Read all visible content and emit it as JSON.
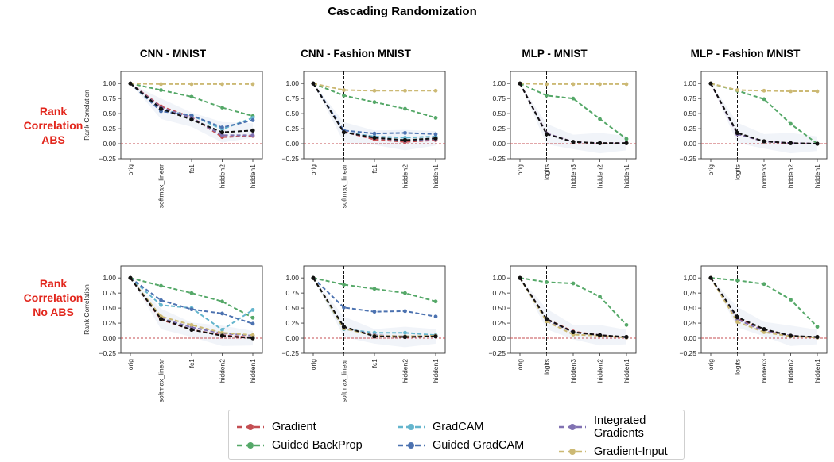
{
  "figure": {
    "title": "Cascading Randomization",
    "row_labels": [
      "Rank\nCorrelation\nABS",
      "Rank\nCorrelation\nNo ABS"
    ]
  },
  "legend": {
    "items": [
      {
        "label": "Gradient",
        "color": "#c44e52"
      },
      {
        "label": "Guided BackProp",
        "color": "#55a868"
      },
      {
        "label": "GradCAM",
        "color": "#64b5cd"
      },
      {
        "label": "Guided GradCAM",
        "color": "#4c72b0"
      },
      {
        "label": "Integrated\nGradients",
        "color": "#8172b2"
      },
      {
        "label": "Gradient-Input",
        "color": "#ccb974"
      }
    ]
  },
  "chart_data": [
    {
      "type": "line",
      "title": "CNN - MNIST",
      "ylabel": "Rank Correlation",
      "ylim": [
        -0.25,
        1.2
      ],
      "yticks": [
        "1.00",
        "0.75",
        "0.50",
        "0.25",
        "0.00",
        "−0.25"
      ],
      "categories": [
        "orig",
        "softmax_linear",
        "fc1",
        "hidden2",
        "hidden1"
      ],
      "reference_line": {
        "x": "softmax_linear",
        "y": 0
      },
      "series": [
        {
          "name": "Gradient",
          "values": [
            1.0,
            0.62,
            0.44,
            0.11,
            0.13
          ]
        },
        {
          "name": "Guided BackProp",
          "values": [
            1.0,
            0.89,
            0.78,
            0.6,
            0.46
          ]
        },
        {
          "name": "GradCAM",
          "values": [
            1.0,
            0.56,
            0.47,
            0.24,
            0.43
          ]
        },
        {
          "name": "Guided GradCAM",
          "values": [
            1.0,
            0.54,
            0.47,
            0.27,
            0.39
          ]
        },
        {
          "name": "Integrated Gradients",
          "values": [
            1.0,
            0.6,
            0.43,
            0.14,
            0.14
          ]
        },
        {
          "name": "Gradient-Input",
          "values": [
            1.0,
            0.99,
            0.99,
            0.99,
            0.99
          ]
        },
        {
          "name": "mean",
          "values": [
            1.0,
            0.58,
            0.4,
            0.19,
            0.22
          ]
        }
      ]
    },
    {
      "type": "line",
      "title": "CNN - Fashion MNIST",
      "ylabel": "",
      "ylim": [
        -0.25,
        1.2
      ],
      "yticks": [
        "1.00",
        "0.75",
        "0.50",
        "0.25",
        "0.00",
        "−0.25"
      ],
      "categories": [
        "orig",
        "softmax_linear",
        "fc1",
        "hidden2",
        "hidden1"
      ],
      "reference_line": {
        "x": "softmax_linear",
        "y": 0
      },
      "series": [
        {
          "name": "Gradient",
          "values": [
            1.0,
            0.2,
            0.07,
            0.03,
            0.06
          ]
        },
        {
          "name": "Guided BackProp",
          "values": [
            1.0,
            0.8,
            0.69,
            0.58,
            0.43
          ]
        },
        {
          "name": "GradCAM",
          "values": [
            1.0,
            0.19,
            0.12,
            0.1,
            0.12
          ]
        },
        {
          "name": "Guided GradCAM",
          "values": [
            1.0,
            0.22,
            0.17,
            0.18,
            0.16
          ]
        },
        {
          "name": "Integrated Gradients",
          "values": [
            1.0,
            0.19,
            0.1,
            0.05,
            0.08
          ]
        },
        {
          "name": "Gradient-Input",
          "values": [
            1.0,
            0.89,
            0.88,
            0.88,
            0.88
          ]
        },
        {
          "name": "mean",
          "values": [
            1.0,
            0.19,
            0.1,
            0.06,
            0.09
          ]
        }
      ]
    },
    {
      "type": "line",
      "title": "MLP - MNIST",
      "ylabel": "",
      "ylim": [
        -0.25,
        1.2
      ],
      "yticks": [
        "1.00",
        "0.75",
        "0.50",
        "0.25",
        "0.00",
        "−0.25"
      ],
      "categories": [
        "orig",
        "logits",
        "hidden3",
        "hidden2",
        "hidden1"
      ],
      "reference_line": {
        "x": "logits",
        "y": 0
      },
      "series": [
        {
          "name": "Gradient",
          "values": [
            1.0,
            0.17,
            0.03,
            0.01,
            0.01
          ]
        },
        {
          "name": "Guided BackProp",
          "values": [
            1.0,
            0.8,
            0.75,
            0.41,
            0.08
          ]
        },
        {
          "name": "Integrated Gradients",
          "values": [
            1.0,
            0.17,
            0.03,
            0.01,
            0.01
          ]
        },
        {
          "name": "Gradient-Input",
          "values": [
            1.0,
            0.99,
            0.99,
            0.99,
            0.99
          ]
        },
        {
          "name": "mean",
          "values": [
            1.0,
            0.16,
            0.03,
            0.01,
            0.01
          ]
        }
      ]
    },
    {
      "type": "line",
      "title": "MLP - Fashion MNIST",
      "ylabel": "",
      "ylim": [
        -0.25,
        1.2
      ],
      "yticks": [
        "1.00",
        "0.75",
        "0.50",
        "0.25",
        "0.00",
        "−0.25"
      ],
      "categories": [
        "orig",
        "logits",
        "hidden3",
        "hidden2",
        "hidden1"
      ],
      "reference_line": {
        "x": "logits",
        "y": 0
      },
      "series": [
        {
          "name": "Gradient",
          "values": [
            1.0,
            0.16,
            0.04,
            0.01,
            0.0
          ]
        },
        {
          "name": "Guided BackProp",
          "values": [
            1.0,
            0.88,
            0.74,
            0.33,
            0.0
          ]
        },
        {
          "name": "Integrated Gradients",
          "values": [
            1.0,
            0.16,
            0.04,
            0.01,
            0.0
          ]
        },
        {
          "name": "Gradient-Input",
          "values": [
            1.0,
            0.89,
            0.88,
            0.87,
            0.87
          ]
        },
        {
          "name": "mean",
          "values": [
            1.0,
            0.18,
            0.04,
            0.01,
            0.0
          ]
        }
      ]
    },
    {
      "type": "line",
      "title": "",
      "ylabel": "Rank Correlation",
      "ylim": [
        -0.25,
        1.2
      ],
      "yticks": [
        "1.00",
        "0.75",
        "0.50",
        "0.25",
        "0.00",
        "−0.25"
      ],
      "categories": [
        "orig",
        "softmax_linear",
        "fc1",
        "hidden2",
        "hidden1"
      ],
      "reference_line": {
        "x": "softmax_linear",
        "y": 0
      },
      "series": [
        {
          "name": "Gradient",
          "values": [
            1.0,
            0.31,
            0.14,
            0.05,
            0.01
          ]
        },
        {
          "name": "Guided BackProp",
          "values": [
            1.0,
            0.87,
            0.75,
            0.61,
            0.34
          ]
        },
        {
          "name": "GradCAM",
          "values": [
            1.0,
            0.55,
            0.5,
            0.14,
            0.47
          ]
        },
        {
          "name": "Guided GradCAM",
          "values": [
            1.0,
            0.63,
            0.48,
            0.41,
            0.24
          ]
        },
        {
          "name": "Integrated Gradients",
          "values": [
            1.0,
            0.33,
            0.18,
            0.08,
            0.04
          ]
        },
        {
          "name": "Gradient-Input",
          "values": [
            1.0,
            0.36,
            0.22,
            0.09,
            0.05
          ]
        },
        {
          "name": "mean",
          "values": [
            1.0,
            0.32,
            0.14,
            0.04,
            0.0
          ]
        }
      ]
    },
    {
      "type": "line",
      "title": "",
      "ylabel": "",
      "ylim": [
        -0.25,
        1.2
      ],
      "yticks": [
        "1.00",
        "0.75",
        "0.50",
        "0.25",
        "0.00",
        "−0.25"
      ],
      "categories": [
        "orig",
        "softmax_linear",
        "fc1",
        "hidden2",
        "hidden1"
      ],
      "reference_line": {
        "x": "softmax_linear",
        "y": 0
      },
      "series": [
        {
          "name": "Gradient",
          "values": [
            1.0,
            0.18,
            0.04,
            0.02,
            0.03
          ]
        },
        {
          "name": "Guided BackProp",
          "values": [
            1.0,
            0.89,
            0.82,
            0.75,
            0.61
          ]
        },
        {
          "name": "GradCAM",
          "values": [
            1.0,
            0.15,
            0.09,
            0.09,
            0.05
          ]
        },
        {
          "name": "Guided GradCAM",
          "values": [
            1.0,
            0.51,
            0.44,
            0.45,
            0.36
          ]
        },
        {
          "name": "Integrated Gradients",
          "values": [
            1.0,
            0.17,
            0.05,
            0.03,
            0.04
          ]
        },
        {
          "name": "Gradient-Input",
          "values": [
            1.0,
            0.16,
            0.04,
            0.03,
            0.04
          ]
        },
        {
          "name": "mean",
          "values": [
            1.0,
            0.19,
            0.03,
            0.02,
            0.03
          ]
        }
      ]
    },
    {
      "type": "line",
      "title": "",
      "ylabel": "",
      "ylim": [
        -0.25,
        1.2
      ],
      "yticks": [
        "1.00",
        "0.75",
        "0.50",
        "0.25",
        "0.00",
        "−0.25"
      ],
      "categories": [
        "orig",
        "logits",
        "hidden3",
        "hidden2",
        "hidden1"
      ],
      "reference_line": {
        "x": "logits",
        "y": 0
      },
      "series": [
        {
          "name": "Gradient",
          "values": [
            1.0,
            0.32,
            0.11,
            0.05,
            0.01
          ]
        },
        {
          "name": "Guided BackProp",
          "values": [
            1.0,
            0.93,
            0.91,
            0.69,
            0.22
          ]
        },
        {
          "name": "Integrated Gradients",
          "values": [
            1.0,
            0.3,
            0.1,
            0.05,
            0.01
          ]
        },
        {
          "name": "Gradient-Input",
          "values": [
            1.0,
            0.28,
            0.06,
            0.04,
            0.01
          ]
        },
        {
          "name": "mean",
          "values": [
            1.0,
            0.32,
            0.1,
            0.05,
            0.02
          ]
        }
      ]
    },
    {
      "type": "line",
      "title": "",
      "ylabel": "",
      "ylim": [
        -0.25,
        1.2
      ],
      "yticks": [
        "1,00",
        "0,75",
        "0,50",
        "0,25",
        "0,00",
        "−0,25"
      ],
      "categories": [
        "orig",
        "logits",
        "hidden3",
        "hidden2",
        "hidden1"
      ],
      "reference_line": {
        "x": "logits",
        "y": 0
      },
      "series": [
        {
          "name": "Gradient",
          "values": [
            1.0,
            0.33,
            0.14,
            0.04,
            0.01
          ]
        },
        {
          "name": "Guided BackProp",
          "values": [
            1.0,
            0.96,
            0.9,
            0.64,
            0.19
          ]
        },
        {
          "name": "Integrated Gradients",
          "values": [
            1.0,
            0.31,
            0.12,
            0.04,
            0.01
          ]
        },
        {
          "name": "Gradient-Input",
          "values": [
            1.0,
            0.27,
            0.1,
            0.03,
            0.01
          ]
        },
        {
          "name": "mean",
          "values": [
            1.0,
            0.35,
            0.15,
            0.04,
            0.02
          ]
        }
      ]
    }
  ]
}
